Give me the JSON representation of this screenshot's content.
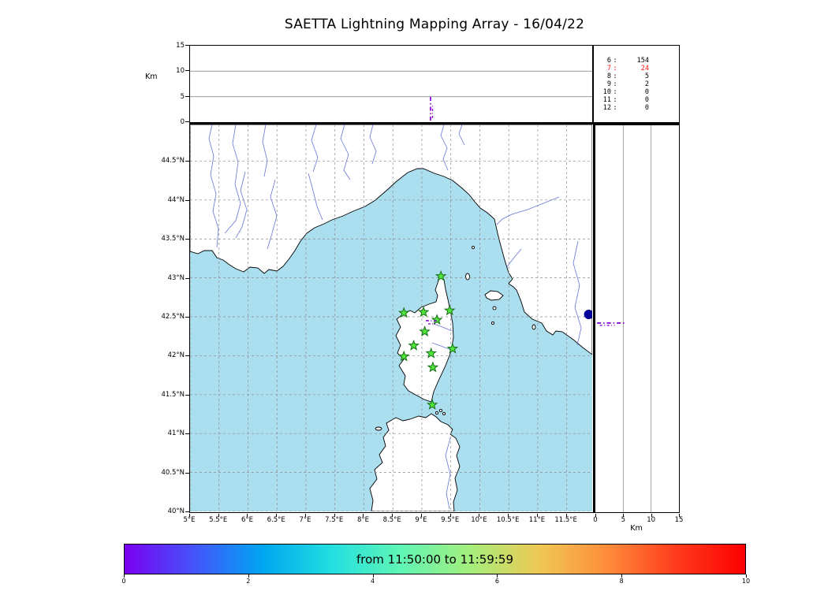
{
  "title": "SAETTA Lightning Mapping Array - 16/04/22",
  "colors": {
    "sea": "#abdeef",
    "land": "#ffffff",
    "coast": "#000000",
    "river": "#5e6fd2",
    "grid": "#8c8c8c",
    "station_fill": "#50e63c",
    "station_stroke": "#146e14",
    "source": "#8a0fd6",
    "marker": "#000099",
    "highlight_red": "#ff1111"
  },
  "chart_data": {
    "type": "map+altitude-scatter",
    "title": "SAETTA Lightning Mapping Array - 16/04/22",
    "map": {
      "lon_min": 5.0,
      "lon_max": 11.94,
      "lat_min": 40.0,
      "lat_max": 44.97,
      "lon_ticks": [
        {
          "value": 5,
          "label": "5°E"
        },
        {
          "value": 5.5,
          "label": "5.5°E"
        },
        {
          "value": 6,
          "label": "6°E"
        },
        {
          "value": 6.5,
          "label": "6.5°E"
        },
        {
          "value": 7,
          "label": "7°E"
        },
        {
          "value": 7.5,
          "label": "7.5°E"
        },
        {
          "value": 8,
          "label": "8°E"
        },
        {
          "value": 8.5,
          "label": "8.5°E"
        },
        {
          "value": 9,
          "label": "9°E"
        },
        {
          "value": 9.5,
          "label": "9.5°E"
        },
        {
          "value": 10,
          "label": "10°E"
        },
        {
          "value": 10.5,
          "label": "10.5°E"
        },
        {
          "value": 11,
          "label": "11°E"
        },
        {
          "value": 11.5,
          "label": "11.5°E"
        }
      ],
      "lat_ticks": [
        {
          "value": 44.5,
          "label": "44.5°N"
        },
        {
          "value": 44,
          "label": "44°N"
        },
        {
          "value": 43.5,
          "label": "43.5°N"
        },
        {
          "value": 43,
          "label": "43°N"
        },
        {
          "value": 42.5,
          "label": "42.5°N"
        },
        {
          "value": 42,
          "label": "42°N"
        },
        {
          "value": 41.5,
          "label": "41.5°N"
        },
        {
          "value": 41,
          "label": "41°N"
        },
        {
          "value": 40.5,
          "label": "40.5°N"
        },
        {
          "value": 40,
          "label": "40°N"
        }
      ],
      "stations_lonlat": [
        [
          9.33,
          43.02
        ],
        [
          8.69,
          42.55
        ],
        [
          9.03,
          42.56
        ],
        [
          9.48,
          42.58
        ],
        [
          9.26,
          42.46
        ],
        [
          9.05,
          42.31
        ],
        [
          8.86,
          42.13
        ],
        [
          9.53,
          42.09
        ],
        [
          8.69,
          41.99
        ],
        [
          9.16,
          42.03
        ],
        [
          9.19,
          41.85
        ],
        [
          9.18,
          41.37
        ]
      ],
      "blue_marker_lonlat": [
        11.88,
        42.53
      ],
      "lightning_sources": {
        "lon": 9.15,
        "lat": 42.43,
        "alt_min_km": 0.3,
        "alt_max_km": 5.2
      }
    },
    "altitude_axis": {
      "label": "Km",
      "max": 15,
      "ticks": [
        0,
        5,
        10,
        15
      ],
      "grid": [
        5,
        10
      ]
    },
    "counts": {
      "rows": [
        {
          "label": "6",
          "value": "154",
          "red": false
        },
        {
          "label": "7",
          "value": "24",
          "red": true
        },
        {
          "label": "8",
          "value": "5",
          "red": false
        },
        {
          "label": "9",
          "value": "2",
          "red": false
        },
        {
          "label": "10",
          "value": "0",
          "red": false
        },
        {
          "label": "11",
          "value": "0",
          "red": false
        },
        {
          "label": "12",
          "value": "0",
          "red": false
        }
      ]
    },
    "colorbar": {
      "label": "from 11:50:00 to 11:59:59",
      "range": [
        0,
        10
      ],
      "tick_labels": [
        "0",
        "2",
        "4",
        "6",
        "8",
        "10"
      ],
      "gradient": [
        "#7a00f0",
        "#4453fb",
        "#00a6f0",
        "#22dfe0",
        "#5ff5b5",
        "#a4ef7d",
        "#eec955",
        "#ff8c3a",
        "#ff3b1d",
        "#fb0000"
      ]
    }
  }
}
